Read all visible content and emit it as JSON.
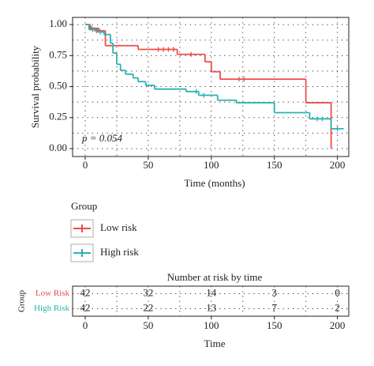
{
  "chart_data": [
    {
      "type": "step",
      "xlabel": "Time (months)",
      "ylabel": "Survival probability",
      "annotation": "p = 0.054",
      "xlim": [
        -10,
        209
      ],
      "ylim": [
        -0.064,
        1.058
      ],
      "xticks": [
        0,
        50,
        100,
        150,
        200
      ],
      "yticks": [
        {
          "value": 0,
          "label": "0.00"
        },
        {
          "value": 0.25,
          "label": "0.25"
        },
        {
          "value": 0.5,
          "label": "0.50"
        },
        {
          "value": 0.75,
          "label": "0.75"
        },
        {
          "value": 1,
          "label": "1.00"
        }
      ],
      "grid": true,
      "legend_title": "Group",
      "series": [
        {
          "name": "Low risk",
          "color": "#ee4b4b",
          "x": [
            0,
            4,
            11,
            16,
            42,
            73,
            95,
            100,
            107,
            175,
            195
          ],
          "values": [
            1.0,
            0.97,
            0.95,
            0.83,
            0.8,
            0.76,
            0.7,
            0.62,
            0.56,
            0.37,
            0.0
          ],
          "censored_x": [
            5,
            9,
            58,
            62,
            66,
            70,
            84,
            122,
            126
          ],
          "censored_values": [
            0.97,
            0.95,
            0.8,
            0.8,
            0.8,
            0.8,
            0.76,
            0.56,
            0.56
          ]
        },
        {
          "name": "High risk",
          "color": "#2ab3b0",
          "x": [
            0,
            3,
            10,
            15,
            20,
            22,
            25,
            28,
            32,
            38,
            42,
            48,
            55,
            80,
            90,
            105,
            120,
            150,
            178,
            195,
            205
          ],
          "values": [
            1.0,
            0.96,
            0.94,
            0.92,
            0.85,
            0.77,
            0.68,
            0.63,
            0.6,
            0.57,
            0.54,
            0.51,
            0.48,
            0.46,
            0.43,
            0.39,
            0.37,
            0.29,
            0.24,
            0.16,
            0.16
          ],
          "censored_x": [
            6,
            12,
            88,
            94,
            184,
            188,
            200
          ],
          "censored_values": [
            0.96,
            0.94,
            0.46,
            0.43,
            0.24,
            0.24,
            0.16
          ]
        }
      ]
    },
    {
      "type": "risk_table",
      "title": "Number at risk by time",
      "xlabel": "Time",
      "ylabel": "Group",
      "xlim": [
        -10,
        209
      ],
      "xticks": [
        0,
        50,
        100,
        150,
        200
      ],
      "x": [
        0,
        50,
        100,
        150,
        200
      ],
      "grid": true,
      "series": [
        {
          "name": "Low Risk",
          "color": "#ee4b4b",
          "values": [
            42,
            32,
            14,
            3,
            0
          ]
        },
        {
          "name": "High Risk",
          "color": "#2ab3b0",
          "values": [
            42,
            22,
            13,
            7,
            2
          ]
        }
      ]
    }
  ]
}
